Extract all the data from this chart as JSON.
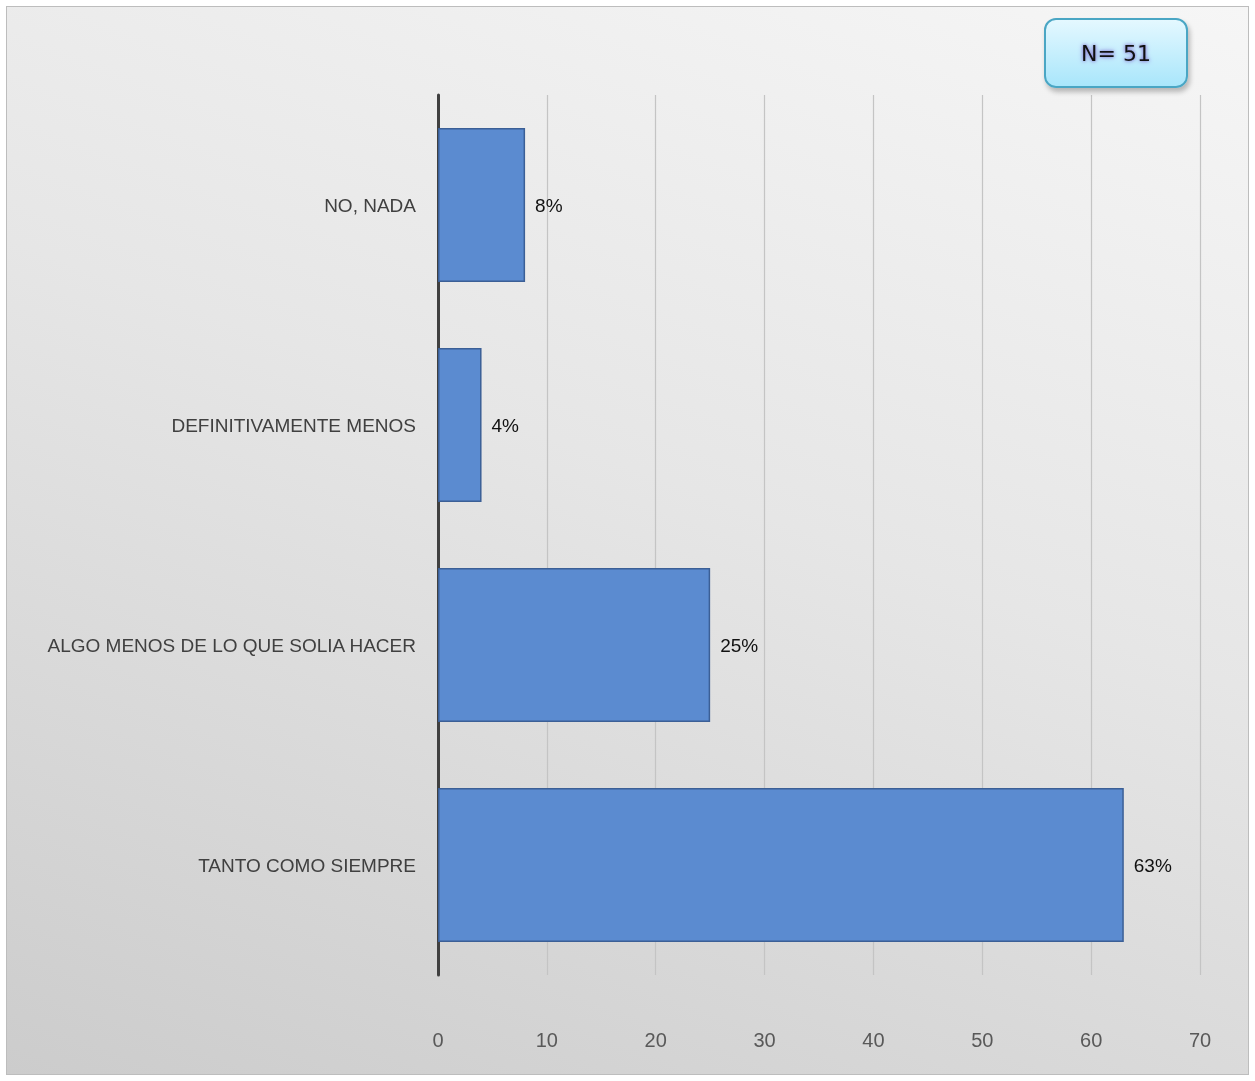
{
  "chart_data": {
    "type": "bar",
    "orientation": "horizontal",
    "categories": [
      "NO, NADA",
      "DEFINITIVAMENTE MENOS",
      "ALGO MENOS DE LO QUE SOLIA HACER",
      "TANTO COMO SIEMPRE"
    ],
    "values": [
      8,
      4,
      25,
      63
    ],
    "value_labels": [
      "8%",
      "4%",
      "25%",
      "63%"
    ],
    "color": "#5b8bd0",
    "xlim": [
      0,
      70
    ],
    "xticks": [
      0,
      10,
      20,
      30,
      40,
      50,
      60,
      70
    ],
    "grid": "x",
    "annotations": [
      "N= 51"
    ]
  }
}
